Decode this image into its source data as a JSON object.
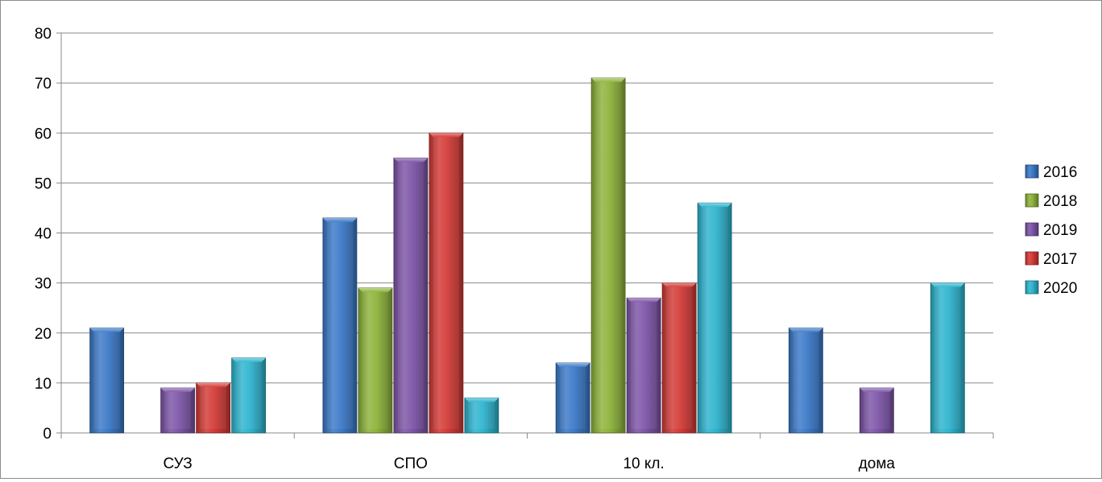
{
  "chart_data": {
    "type": "bar",
    "categories": [
      "СУЗ",
      "СПО",
      "10 кл.",
      "дома"
    ],
    "series": [
      {
        "name": "2016",
        "color": "#3b79c8",
        "values": [
          21,
          43,
          14,
          21
        ]
      },
      {
        "name": "2018",
        "color": "#8db33a",
        "values": [
          0,
          29,
          71,
          0
        ]
      },
      {
        "name": "2019",
        "color": "#7d55a8",
        "values": [
          9,
          55,
          27,
          9
        ]
      },
      {
        "name": "2017",
        "color": "#d33a36",
        "values": [
          10,
          60,
          30,
          0
        ]
      },
      {
        "name": "2020",
        "color": "#2eb4cf",
        "values": [
          15,
          7,
          46,
          30
        ]
      }
    ],
    "ylim": [
      0,
      80
    ],
    "yticks": [
      "0",
      "10",
      "20",
      "30",
      "40",
      "50",
      "60",
      "70",
      "80"
    ],
    "grid": true,
    "legend_position": "right"
  }
}
